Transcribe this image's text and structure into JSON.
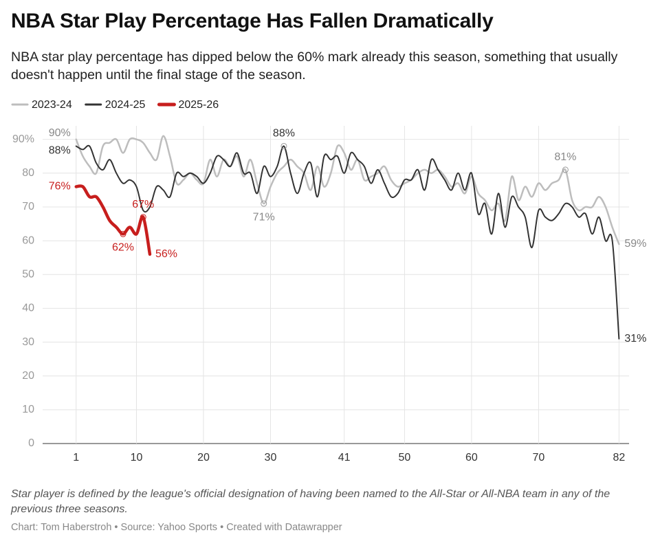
{
  "chart_data": {
    "type": "line",
    "title": "NBA Star Play Percentage Has Fallen Dramatically",
    "subtitle": "NBA star play percentage has dipped below the 60% mark already this season, something that usually doesn't happen until the final stage of the season.",
    "notes": "Star player is defined by the league's official designation of having been named to the All-Star or All-NBA team in any of the previous three seasons.",
    "source": "Chart: Tom Haberstroh • Source: Yahoo Sports • Created with Datawrapper",
    "x": [
      1,
      2,
      3,
      4,
      5,
      6,
      7,
      8,
      9,
      10,
      11,
      12,
      13,
      14,
      15,
      16,
      17,
      18,
      19,
      20,
      21,
      22,
      23,
      24,
      25,
      26,
      27,
      28,
      29,
      30,
      31,
      32,
      33,
      34,
      35,
      36,
      37,
      38,
      39,
      40,
      41,
      42,
      43,
      44,
      45,
      46,
      47,
      48,
      49,
      50,
      51,
      52,
      53,
      54,
      55,
      56,
      57,
      58,
      59,
      60,
      61,
      62,
      63,
      64,
      65,
      66,
      67,
      68,
      69,
      70,
      71,
      72,
      73,
      74,
      75,
      76,
      77,
      78,
      79,
      80,
      81,
      82
    ],
    "xlim": [
      -4,
      83.5
    ],
    "xticks": [
      1,
      10,
      20,
      30,
      41,
      50,
      60,
      70,
      82
    ],
    "ylim": [
      0,
      94
    ],
    "yticks": [
      0,
      10,
      20,
      30,
      40,
      50,
      60,
      70,
      80,
      {
        "value": 90,
        "label": "90%"
      }
    ],
    "grid": true,
    "series": [
      {
        "name": "2023-24",
        "color": "#bdbdbd",
        "values": [
          90,
          85,
          82,
          80,
          88,
          89,
          90,
          86,
          90,
          90,
          89,
          86,
          84,
          91,
          85,
          77,
          78,
          80,
          78,
          77,
          84,
          79,
          84,
          82,
          85,
          79,
          84,
          77,
          71,
          76,
          80,
          82,
          84,
          82,
          80,
          75,
          82,
          76,
          80,
          88,
          86,
          81,
          84,
          78,
          79,
          80,
          82,
          78,
          76,
          77,
          78,
          80,
          81,
          80,
          81,
          79,
          76,
          77,
          74,
          79,
          74,
          72,
          69,
          71,
          66,
          79,
          72,
          76,
          73,
          77,
          75,
          77,
          78,
          81,
          72,
          69,
          70,
          70,
          73,
          70,
          64,
          59
        ],
        "value_labels": [
          "90%",
          null,
          null,
          null,
          null,
          null,
          null,
          null,
          null,
          null,
          null,
          null,
          null,
          null,
          null,
          null,
          null,
          null,
          null,
          null,
          null,
          null,
          null,
          null,
          null,
          null,
          null,
          null,
          "71%",
          null,
          null,
          null,
          null,
          null,
          null,
          null,
          null,
          null,
          null,
          null,
          null,
          null,
          null,
          null,
          null,
          null,
          null,
          null,
          null,
          null,
          null,
          null,
          null,
          null,
          null,
          null,
          null,
          null,
          null,
          null,
          null,
          null,
          null,
          null,
          null,
          null,
          null,
          null,
          null,
          null,
          null,
          null,
          null,
          "81%",
          null,
          null,
          null,
          null,
          null,
          null,
          null,
          "59%"
        ]
      },
      {
        "name": "2024-25",
        "color": "#333333",
        "values": [
          88,
          87,
          88,
          83,
          81,
          84,
          80,
          77,
          78,
          76,
          69,
          70,
          76,
          75,
          73,
          80,
          79,
          80,
          79,
          77,
          80,
          85,
          84,
          82,
          86,
          80,
          80,
          74,
          82,
          79,
          82,
          88,
          80,
          74,
          80,
          83,
          73,
          85,
          84,
          85,
          80,
          86,
          84,
          82,
          77,
          81,
          77,
          73,
          74,
          78,
          78,
          81,
          75,
          84,
          81,
          78,
          75,
          80,
          75,
          80,
          68,
          71,
          62,
          74,
          64,
          73,
          70,
          67,
          58,
          69,
          67,
          66,
          68,
          71,
          70,
          67,
          68,
          62,
          67,
          60,
          60,
          31
        ],
        "value_labels": [
          "88%",
          null,
          null,
          null,
          null,
          null,
          null,
          null,
          null,
          null,
          null,
          null,
          null,
          null,
          null,
          null,
          null,
          null,
          null,
          null,
          null,
          null,
          null,
          null,
          null,
          null,
          null,
          null,
          null,
          null,
          null,
          "88%",
          null,
          null,
          null,
          null,
          null,
          null,
          null,
          null,
          null,
          null,
          null,
          null,
          null,
          null,
          null,
          null,
          null,
          null,
          null,
          null,
          null,
          null,
          null,
          null,
          null,
          null,
          null,
          null,
          null,
          null,
          null,
          null,
          null,
          null,
          null,
          null,
          null,
          null,
          null,
          null,
          null,
          null,
          null,
          null,
          null,
          null,
          null,
          null,
          null,
          "31%"
        ]
      },
      {
        "name": "2025-26",
        "color": "#c71e1d",
        "values": [
          76,
          76,
          73,
          73,
          70,
          66,
          64,
          62,
          64,
          62,
          67,
          56,
          null,
          null,
          null,
          null,
          null,
          null,
          null,
          null,
          null,
          null,
          null,
          null,
          null,
          null,
          null,
          null,
          null,
          null,
          null,
          null,
          null,
          null,
          null,
          null,
          null,
          null,
          null,
          null,
          null,
          null,
          null,
          null,
          null,
          null,
          null,
          null,
          null,
          null,
          null,
          null,
          null,
          null,
          null,
          null,
          null,
          null,
          null,
          null,
          null,
          null,
          null,
          null,
          null,
          null,
          null,
          null,
          null,
          null,
          null,
          null,
          null,
          null,
          null,
          null,
          null,
          null,
          null,
          null,
          null,
          null
        ],
        "value_labels": [
          "76%",
          null,
          null,
          null,
          null,
          null,
          null,
          "62%",
          null,
          null,
          "67%",
          "56%",
          null,
          null,
          null,
          null,
          null,
          null,
          null,
          null,
          null,
          null,
          null,
          null,
          null,
          null,
          null,
          null,
          null,
          null,
          null,
          null,
          null,
          null,
          null,
          null,
          null,
          null,
          null,
          null,
          null,
          null,
          null,
          null,
          null,
          null,
          null,
          null,
          null,
          null,
          null,
          null,
          null,
          null,
          null,
          null,
          null,
          null,
          null,
          null,
          null,
          null,
          null,
          null,
          null,
          null,
          null,
          null,
          null,
          null,
          null,
          null,
          null,
          null,
          null,
          null,
          null,
          null,
          null,
          null,
          null,
          null
        ]
      }
    ]
  }
}
